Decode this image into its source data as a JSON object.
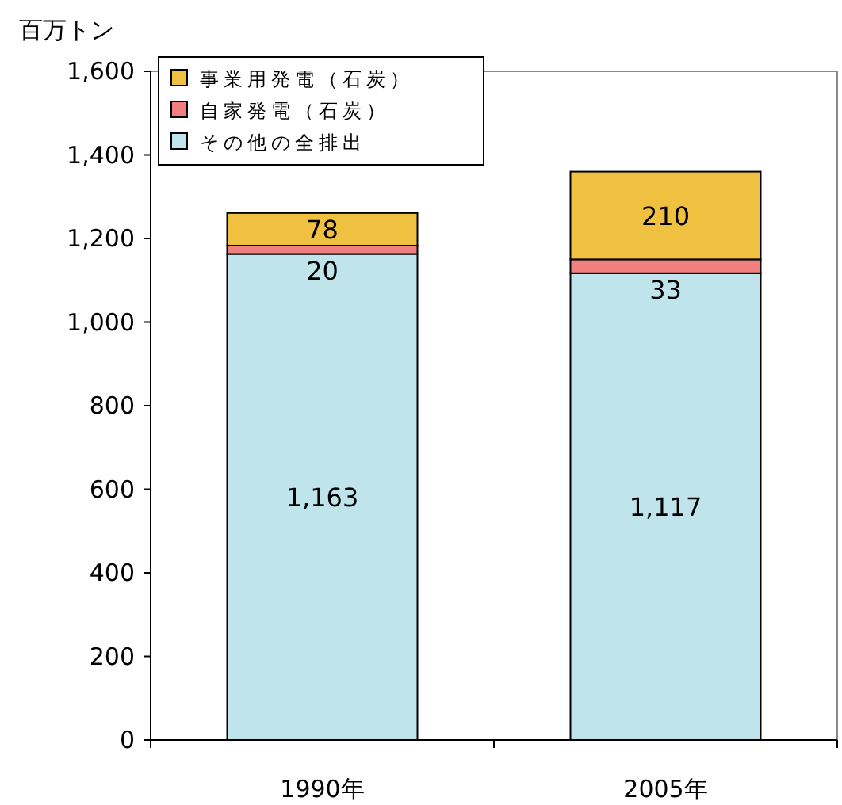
{
  "chart_data": {
    "type": "bar",
    "stacked": true,
    "ylabel": "百万トン",
    "categories": [
      "1990年",
      "2005年"
    ],
    "series": [
      {
        "name": "その他の全排出",
        "color": "#c0e4ec",
        "values": [
          1163,
          1117
        ],
        "value_labels": [
          "1,163",
          "1,117"
        ]
      },
      {
        "name": "自家発電（石炭）",
        "color": "#f08080",
        "values": [
          20,
          33
        ],
        "value_labels": [
          "20",
          "33"
        ]
      },
      {
        "name": "事業用発電（石炭）",
        "color": "#f0c040",
        "values": [
          78,
          210
        ],
        "value_labels": [
          "78",
          "210"
        ]
      }
    ],
    "ylim": [
      0,
      1600
    ],
    "yticks": [
      {
        "value": 0,
        "label": "0"
      },
      {
        "value": 200,
        "label": "200"
      },
      {
        "value": 400,
        "label": "400"
      },
      {
        "value": 600,
        "label": "600"
      },
      {
        "value": 800,
        "label": "800"
      },
      {
        "value": 1000,
        "label": "1,000"
      },
      {
        "value": 1200,
        "label": "1,200"
      },
      {
        "value": 1400,
        "label": "1,400"
      },
      {
        "value": 1600,
        "label": "1,600"
      }
    ],
    "legend": "top left"
  }
}
